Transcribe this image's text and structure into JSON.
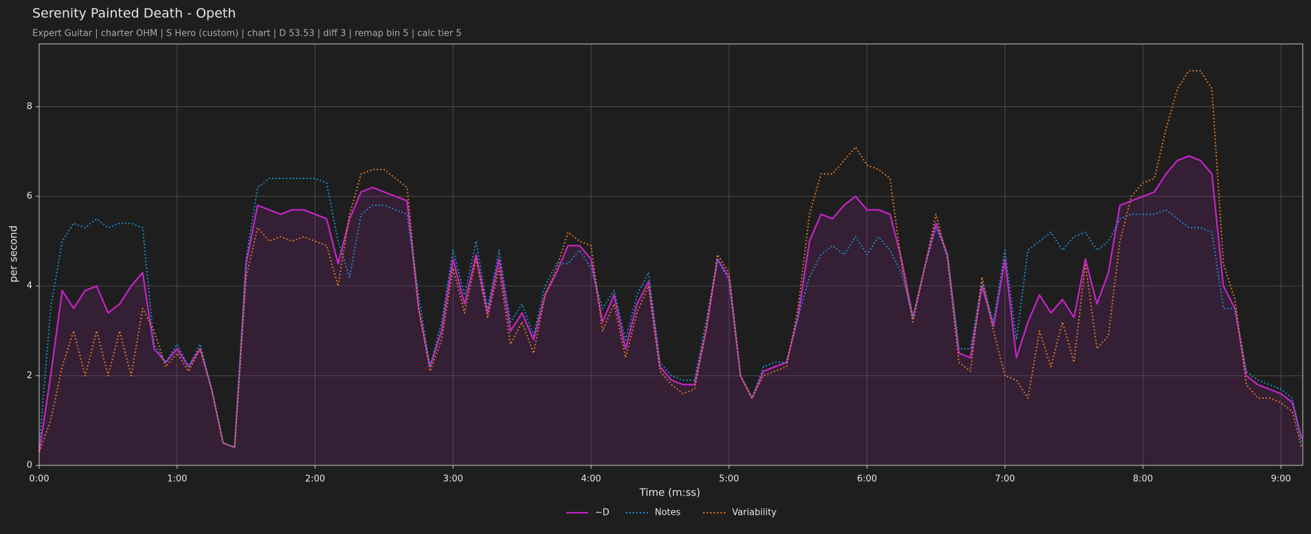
{
  "chart_data": {
    "type": "line",
    "title": "Serenity Painted Death - Opeth",
    "subtitle": "Expert Guitar  |  charter OHM  |  S Hero (custom)  |  chart  |  D 53.53  |  diff 3  |  remap bin 5  |  calc tier 5",
    "xlabel": "Time (m:ss)",
    "ylabel": "per second",
    "xlim": [
      0,
      549.5
    ],
    "ylim": [
      0,
      9.4
    ],
    "xticks": [
      {
        "value": 0,
        "label": "0:00"
      },
      {
        "value": 60,
        "label": "1:00"
      },
      {
        "value": 120,
        "label": "2:00"
      },
      {
        "value": 180,
        "label": "3:00"
      },
      {
        "value": 240,
        "label": "4:00"
      },
      {
        "value": 300,
        "label": "5:00"
      },
      {
        "value": 360,
        "label": "6:00"
      },
      {
        "value": 420,
        "label": "7:00"
      },
      {
        "value": 480,
        "label": "8:00"
      },
      {
        "value": 540,
        "label": "9:00"
      }
    ],
    "yticks": [
      0,
      2,
      4,
      6,
      8
    ],
    "grid": true,
    "legend": "bottom",
    "x": [
      0,
      5,
      10,
      15,
      20,
      25,
      30,
      35,
      40,
      45,
      50,
      55,
      60,
      65,
      70,
      75,
      80,
      85,
      90,
      95,
      100,
      105,
      110,
      115,
      120,
      125,
      130,
      135,
      140,
      145,
      150,
      155,
      160,
      165,
      170,
      175,
      180,
      185,
      190,
      195,
      200,
      205,
      210,
      215,
      220,
      225,
      230,
      235,
      240,
      245,
      250,
      255,
      260,
      265,
      270,
      275,
      280,
      285,
      290,
      295,
      300,
      305,
      310,
      315,
      320,
      325,
      330,
      335,
      340,
      345,
      350,
      355,
      360,
      365,
      370,
      375,
      380,
      385,
      390,
      395,
      400,
      405,
      410,
      415,
      420,
      425,
      430,
      435,
      440,
      445,
      450,
      455,
      460,
      465,
      470,
      475,
      480,
      485,
      490,
      495,
      500,
      505,
      510,
      515,
      520,
      525,
      530,
      535,
      540,
      545,
      549
    ],
    "series": [
      {
        "name": "~D",
        "color": "#c825c8",
        "style": "solid",
        "fill": true,
        "values": [
          0.3,
          2.0,
          3.9,
          3.5,
          3.9,
          4.0,
          3.4,
          3.6,
          4.0,
          4.3,
          2.6,
          2.3,
          2.6,
          2.2,
          2.6,
          1.7,
          0.5,
          0.4,
          4.5,
          5.8,
          5.7,
          5.6,
          5.7,
          5.7,
          5.6,
          5.5,
          4.5,
          5.5,
          6.1,
          6.2,
          6.1,
          6.0,
          5.9,
          3.5,
          2.2,
          3.0,
          4.6,
          3.6,
          4.7,
          3.4,
          4.6,
          3.0,
          3.4,
          2.8,
          3.8,
          4.3,
          4.9,
          4.9,
          4.6,
          3.2,
          3.8,
          2.6,
          3.6,
          4.1,
          2.2,
          1.9,
          1.8,
          1.8,
          3.0,
          4.6,
          4.2,
          2.0,
          1.5,
          2.1,
          2.2,
          2.3,
          3.3,
          5.0,
          5.6,
          5.5,
          5.8,
          6.0,
          5.7,
          5.7,
          5.6,
          4.6,
          3.3,
          4.4,
          5.4,
          4.7,
          2.5,
          2.4,
          4.0,
          3.1,
          4.6,
          2.4,
          3.2,
          3.8,
          3.4,
          3.7,
          3.3,
          4.6,
          3.6,
          4.3,
          5.8,
          5.9,
          6.0,
          6.1,
          6.5,
          6.8,
          6.9,
          6.8,
          6.5,
          4.0,
          3.5,
          2.0,
          1.8,
          1.7,
          1.6,
          1.4,
          0.6
        ]
      },
      {
        "name": "Notes",
        "color": "#1f8fd0",
        "style": "dotted",
        "values": [
          0.4,
          3.5,
          5.0,
          5.4,
          5.3,
          5.5,
          5.3,
          5.4,
          5.4,
          5.3,
          2.7,
          2.3,
          2.7,
          2.2,
          2.7,
          1.7,
          0.5,
          0.4,
          4.6,
          6.2,
          6.4,
          6.4,
          6.4,
          6.4,
          6.4,
          6.3,
          5.0,
          4.2,
          5.6,
          5.8,
          5.8,
          5.7,
          5.6,
          3.8,
          2.2,
          3.2,
          4.8,
          3.8,
          5.0,
          3.5,
          4.8,
          3.2,
          3.6,
          2.9,
          4.0,
          4.5,
          4.5,
          4.8,
          4.4,
          3.5,
          3.9,
          2.8,
          3.8,
          4.3,
          2.3,
          2.0,
          1.9,
          1.9,
          3.2,
          4.6,
          4.1,
          2.0,
          1.5,
          2.2,
          2.3,
          2.3,
          3.3,
          4.2,
          4.7,
          4.9,
          4.7,
          5.1,
          4.7,
          5.1,
          4.8,
          4.3,
          3.3,
          4.4,
          5.3,
          4.7,
          2.6,
          2.6,
          4.1,
          3.2,
          4.8,
          2.8,
          4.8,
          5.0,
          5.2,
          4.8,
          5.1,
          5.2,
          4.8,
          5.0,
          5.5,
          5.6,
          5.6,
          5.6,
          5.7,
          5.5,
          5.3,
          5.3,
          5.2,
          3.5,
          3.5,
          2.1,
          1.9,
          1.8,
          1.7,
          1.5,
          0.5
        ]
      },
      {
        "name": "Variability",
        "color": "#e27b2a",
        "style": "dotted",
        "values": [
          0.3,
          1.0,
          2.2,
          3.0,
          2.0,
          3.0,
          2.0,
          3.0,
          2.0,
          3.5,
          3.0,
          2.2,
          2.5,
          2.1,
          2.6,
          1.7,
          0.5,
          0.4,
          4.2,
          5.3,
          5.0,
          5.1,
          5.0,
          5.1,
          5.0,
          4.9,
          4.0,
          5.6,
          6.5,
          6.6,
          6.6,
          6.4,
          6.2,
          3.5,
          2.1,
          2.8,
          4.4,
          3.4,
          4.6,
          3.3,
          4.4,
          2.7,
          3.2,
          2.5,
          3.8,
          4.4,
          5.2,
          5.0,
          4.9,
          3.0,
          3.6,
          2.4,
          3.4,
          4.0,
          2.1,
          1.8,
          1.6,
          1.7,
          3.0,
          4.7,
          4.3,
          2.0,
          1.5,
          2.0,
          2.1,
          2.2,
          3.5,
          5.6,
          6.5,
          6.5,
          6.8,
          7.1,
          6.7,
          6.6,
          6.4,
          4.5,
          3.2,
          4.4,
          5.6,
          4.6,
          2.3,
          2.1,
          4.2,
          3.0,
          2.0,
          1.9,
          1.5,
          3.0,
          2.2,
          3.2,
          2.3,
          4.5,
          2.6,
          2.9,
          5.0,
          6.0,
          6.3,
          6.4,
          7.5,
          8.4,
          8.8,
          8.8,
          8.4,
          4.5,
          3.7,
          1.8,
          1.5,
          1.5,
          1.4,
          1.2,
          0.4
        ]
      }
    ]
  }
}
